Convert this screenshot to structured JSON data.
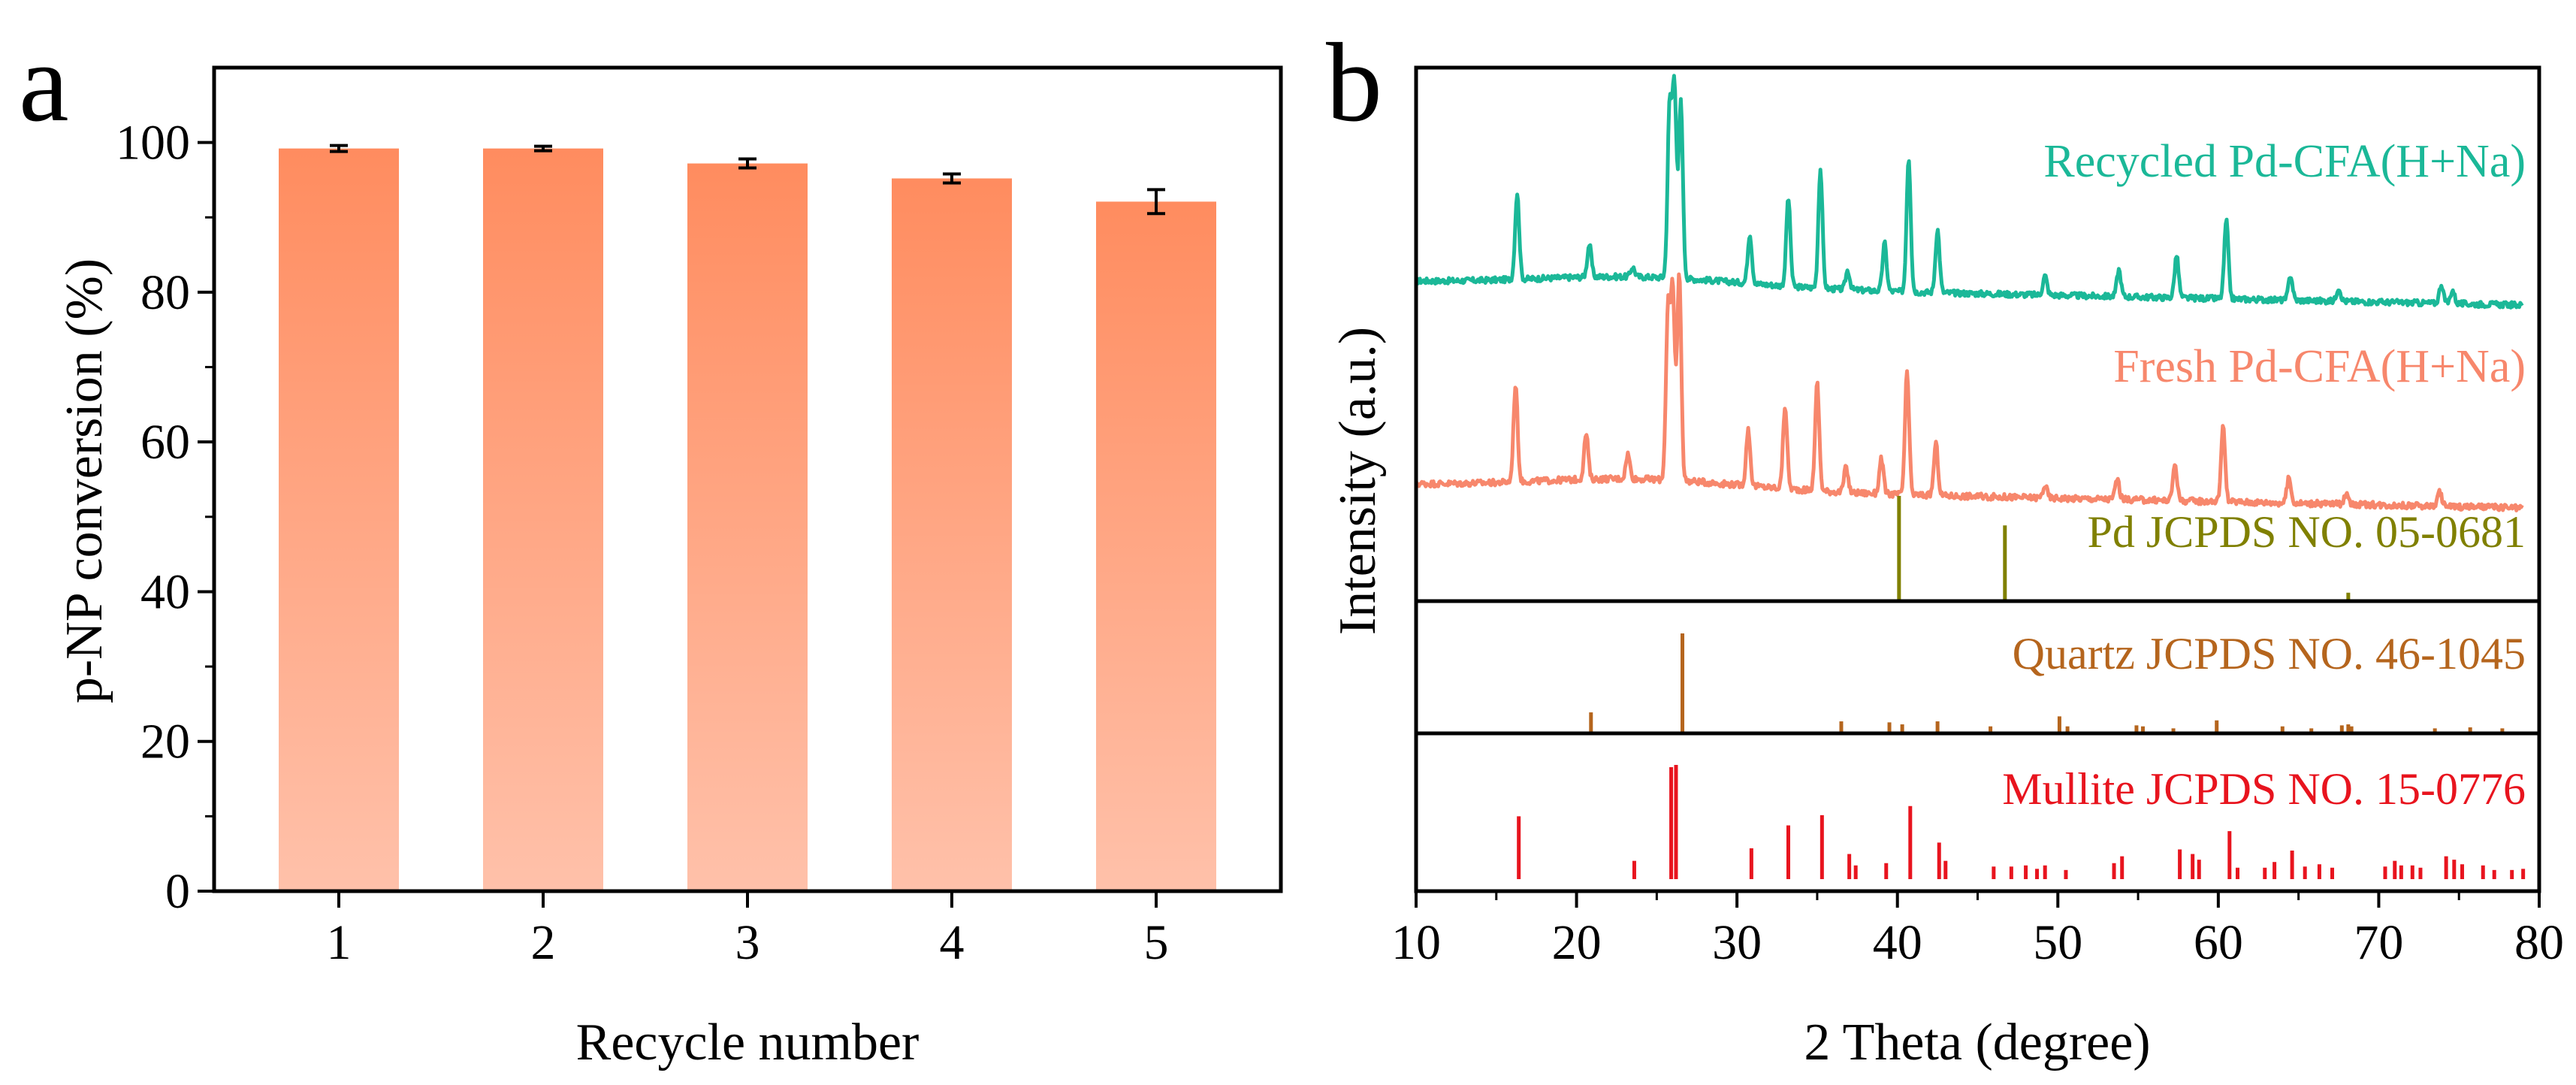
{
  "panels": {
    "a_letter": "a",
    "b_letter": "b"
  },
  "chart_data": [
    {
      "type": "bar",
      "categories": [
        "1",
        "2",
        "3",
        "4",
        "5"
      ],
      "values": [
        99.2,
        99.2,
        97.2,
        95.2,
        92.1
      ],
      "errors": [
        0.4,
        0.3,
        0.6,
        0.6,
        1.6
      ],
      "xlabel": "Recycle number",
      "ylabel": "p-NP conversion (%)",
      "ylim": [
        0,
        100
      ],
      "yticks": [
        "0",
        "20",
        "40",
        "60",
        "80",
        "100"
      ],
      "xticks": [
        "1",
        "2",
        "3",
        "4",
        "5"
      ],
      "bar_color": "#ff8c5f",
      "bar_color_light": "#ffc1aa",
      "grid": false
    },
    {
      "type": "line",
      "xlabel": "2 Theta  (degree)",
      "ylabel": "Intensity (a.u.)",
      "xlim": [
        10,
        80
      ],
      "xticks": [
        "10",
        "20",
        "30",
        "40",
        "50",
        "60",
        "70",
        "80"
      ],
      "grid": false,
      "series": [
        {
          "name": "Recycled Pd-CFA(H+Na)",
          "color": "#1bb898",
          "baseline": 0.885,
          "peaks": [
            [
              16.3,
              0.45
            ],
            [
              20.8,
              0.17
            ],
            [
              23.5,
              0.05
            ],
            [
              25.8,
              0.88
            ],
            [
              26.1,
              1.0
            ],
            [
              26.5,
              0.92
            ],
            [
              30.8,
              0.26
            ],
            [
              33.2,
              0.46
            ],
            [
              35.2,
              0.62
            ],
            [
              36.9,
              0.1
            ],
            [
              39.2,
              0.25
            ],
            [
              40.7,
              0.7
            ],
            [
              42.5,
              0.33
            ],
            [
              49.2,
              0.1
            ],
            [
              53.8,
              0.14
            ],
            [
              57.4,
              0.22
            ],
            [
              60.5,
              0.41
            ],
            [
              64.5,
              0.13
            ],
            [
              67.5,
              0.07
            ],
            [
              73.9,
              0.1
            ],
            [
              74.6,
              0.07
            ]
          ]
        },
        {
          "name": "Fresh Pd-CFA(H+Na)",
          "color": "#f7876c",
          "baseline": 0.845,
          "peaks": [
            [
              16.2,
              0.47
            ],
            [
              20.6,
              0.22
            ],
            [
              23.2,
              0.12
            ],
            [
              25.7,
              0.82
            ],
            [
              26.0,
              0.9
            ],
            [
              26.4,
              1.0
            ],
            [
              30.7,
              0.27
            ],
            [
              33.0,
              0.4
            ],
            [
              35.0,
              0.52
            ],
            [
              36.8,
              0.12
            ],
            [
              39.0,
              0.17
            ],
            [
              40.6,
              0.59
            ],
            [
              42.4,
              0.25
            ],
            [
              49.2,
              0.06
            ],
            [
              53.7,
              0.1
            ],
            [
              57.3,
              0.18
            ],
            [
              60.3,
              0.36
            ],
            [
              64.4,
              0.12
            ],
            [
              68.0,
              0.06
            ],
            [
              73.8,
              0.07
            ]
          ]
        }
      ],
      "references": [
        {
          "name": "Pd JCPDS NO. 05-0681",
          "color": "#808000",
          "lines": [
            [
              40.1,
              1.0
            ],
            [
              46.7,
              0.72
            ],
            [
              68.1,
              0.08
            ]
          ]
        },
        {
          "name": "Quartz JCPDS NO. 46-1045",
          "color": "#b5651d",
          "lines": [
            [
              20.9,
              0.21
            ],
            [
              26.6,
              1.0
            ],
            [
              36.5,
              0.12
            ],
            [
              39.5,
              0.11
            ],
            [
              40.3,
              0.09
            ],
            [
              42.5,
              0.12
            ],
            [
              45.8,
              0.07
            ],
            [
              50.1,
              0.17
            ],
            [
              50.6,
              0.07
            ],
            [
              54.9,
              0.08
            ],
            [
              55.3,
              0.07
            ],
            [
              57.2,
              0.05
            ],
            [
              59.9,
              0.13
            ],
            [
              64.0,
              0.07
            ],
            [
              65.8,
              0.05
            ],
            [
              67.7,
              0.08
            ],
            [
              68.1,
              0.09
            ],
            [
              68.3,
              0.07
            ],
            [
              73.5,
              0.05
            ],
            [
              75.7,
              0.06
            ],
            [
              77.7,
              0.05
            ]
          ]
        },
        {
          "name": "Mullite JCPDS NO. 15-0776",
          "color": "#e8141e",
          "lines": [
            [
              16.4,
              0.55
            ],
            [
              23.6,
              0.16
            ],
            [
              25.9,
              0.98
            ],
            [
              26.2,
              1.0
            ],
            [
              30.9,
              0.27
            ],
            [
              33.2,
              0.47
            ],
            [
              35.3,
              0.56
            ],
            [
              37.0,
              0.22
            ],
            [
              37.4,
              0.12
            ],
            [
              39.3,
              0.14
            ],
            [
              40.8,
              0.64
            ],
            [
              42.6,
              0.32
            ],
            [
              43.0,
              0.16
            ],
            [
              46.0,
              0.11
            ],
            [
              47.1,
              0.11
            ],
            [
              48.0,
              0.12
            ],
            [
              48.7,
              0.09
            ],
            [
              49.2,
              0.12
            ],
            [
              50.5,
              0.08
            ],
            [
              53.5,
              0.14
            ],
            [
              54.0,
              0.2
            ],
            [
              57.6,
              0.26
            ],
            [
              58.4,
              0.22
            ],
            [
              58.8,
              0.17
            ],
            [
              60.7,
              0.42
            ],
            [
              61.2,
              0.1
            ],
            [
              62.9,
              0.1
            ],
            [
              63.5,
              0.15
            ],
            [
              64.6,
              0.25
            ],
            [
              65.4,
              0.11
            ],
            [
              66.3,
              0.13
            ],
            [
              67.1,
              0.1
            ],
            [
              70.4,
              0.11
            ],
            [
              71.0,
              0.16
            ],
            [
              71.4,
              0.12
            ],
            [
              72.1,
              0.12
            ],
            [
              72.6,
              0.1
            ],
            [
              74.2,
              0.2
            ],
            [
              74.7,
              0.17
            ],
            [
              75.2,
              0.13
            ],
            [
              76.5,
              0.12
            ],
            [
              77.2,
              0.08
            ],
            [
              78.3,
              0.08
            ],
            [
              79.0,
              0.09
            ]
          ]
        }
      ]
    }
  ]
}
